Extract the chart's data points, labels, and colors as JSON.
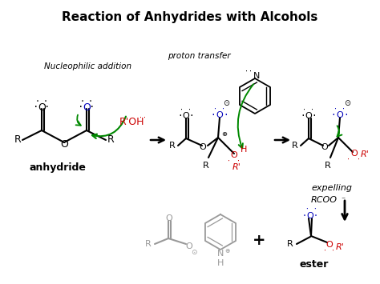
{
  "title": "Reaction of Anhydrides with Alcohols",
  "title_fontsize": 11,
  "bg_color": "#ffffff",
  "figsize": [
    4.74,
    3.55
  ],
  "dpi": 100,
  "colors": {
    "black": "#000000",
    "red": "#cc0000",
    "blue": "#0000bb",
    "green": "#008800",
    "gray": "#999999"
  },
  "labels": {
    "anhydride": "anhydride",
    "ester": "ester",
    "nucleophilic_addition": "Nucleophilic addition",
    "proton_transfer": "proton transfer",
    "expelling_line1": "expelling",
    "expelling_line2": "RCOO"
  }
}
